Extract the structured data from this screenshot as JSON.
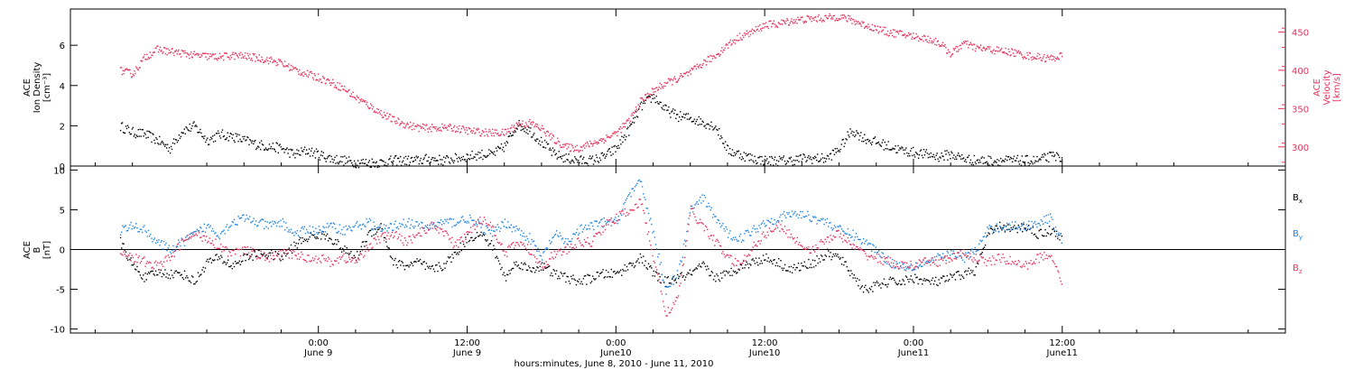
{
  "colors": {
    "black": "#000000",
    "red": "#e8335c",
    "blue": "#1f86e6"
  },
  "chart_data": [
    {
      "type": "scatter",
      "panel": "top",
      "ylabel_left": [
        "ACE",
        "Ion Density",
        "[cm⁻³]"
      ],
      "ylabel_right": [
        "ACE",
        "Velocity",
        "[km/s]"
      ],
      "ylim_left": [
        0,
        7.8
      ],
      "ylim_right": [
        275,
        480
      ],
      "yticks_left": [
        0,
        2,
        4,
        6
      ],
      "yticks_right": [
        300,
        350,
        400,
        450
      ],
      "series": [
        {
          "axis": "left",
          "color": "#000000",
          "x": [
            -16,
            -15,
            -14,
            -13,
            -12,
            -11,
            -10,
            -9,
            -8,
            -7,
            -6,
            -5,
            -4,
            -3,
            -2,
            -1,
            0,
            1,
            2,
            3,
            4,
            5,
            6,
            7,
            8,
            9,
            10,
            11,
            12,
            13,
            14,
            15,
            16,
            17,
            18,
            19,
            20,
            21,
            22,
            23,
            24,
            25,
            26,
            27,
            28,
            29,
            30,
            31,
            32,
            33,
            34,
            35,
            36,
            37,
            38,
            39,
            40,
            41,
            42,
            43,
            44,
            45,
            46,
            47,
            48,
            49,
            50,
            51,
            52,
            53,
            54,
            55,
            56,
            57,
            58,
            59,
            60
          ],
          "y": [
            2.0,
            1.7,
            1.6,
            1.3,
            0.9,
            1.8,
            2.0,
            1.3,
            1.6,
            1.5,
            1.3,
            1.1,
            1.0,
            0.9,
            0.6,
            0.8,
            0.6,
            0.4,
            0.3,
            0.2,
            0.2,
            0.2,
            0.3,
            0.3,
            0.3,
            0.4,
            0.3,
            0.4,
            0.5,
            0.6,
            0.6,
            1.0,
            2.1,
            1.8,
            1.2,
            0.6,
            0.4,
            0.3,
            0.3,
            0.5,
            0.9,
            1.8,
            3.0,
            3.5,
            2.8,
            2.5,
            2.4,
            2.2,
            2.0,
            0.8,
            0.6,
            0.4,
            0.3,
            0.3,
            0.3,
            0.4,
            0.4,
            0.4,
            0.9,
            1.8,
            1.4,
            1.2,
            1.0,
            0.8,
            0.7,
            0.6,
            0.5,
            0.6,
            0.4,
            0.3,
            0.3,
            0.3,
            0.3,
            0.3,
            0.3,
            0.5,
            0.5
          ]
        },
        {
          "axis": "right",
          "color": "#e8335c",
          "x": [
            -16,
            -15,
            -14,
            -13,
            -12,
            -11,
            -10,
            -9,
            -8,
            -7,
            -6,
            -5,
            -4,
            -3,
            -2,
            -1,
            0,
            1,
            2,
            3,
            4,
            5,
            6,
            7,
            8,
            9,
            10,
            11,
            12,
            13,
            14,
            15,
            16,
            17,
            18,
            19,
            20,
            21,
            22,
            23,
            24,
            25,
            26,
            27,
            28,
            29,
            30,
            31,
            32,
            33,
            34,
            35,
            36,
            37,
            38,
            39,
            40,
            41,
            42,
            43,
            44,
            45,
            46,
            47,
            48,
            49,
            50,
            51,
            52,
            53,
            54,
            55,
            56,
            57,
            58,
            59,
            60
          ],
          "y": [
            400,
            396,
            418,
            428,
            425,
            423,
            420,
            419,
            418,
            420,
            419,
            417,
            414,
            410,
            402,
            396,
            391,
            385,
            377,
            365,
            355,
            345,
            336,
            330,
            326,
            325,
            326,
            325,
            322,
            320,
            319,
            319,
            330,
            332,
            324,
            310,
            300,
            299,
            305,
            311,
            319,
            334,
            361,
            374,
            384,
            390,
            398,
            410,
            420,
            434,
            445,
            451,
            460,
            461,
            465,
            467,
            468,
            469,
            471,
            466,
            460,
            455,
            450,
            448,
            445,
            442,
            437,
            422,
            436,
            430,
            428,
            426,
            424,
            420,
            418,
            416,
            420
          ]
        }
      ]
    },
    {
      "type": "scatter",
      "panel": "bottom",
      "ylabel": [
        "ACE",
        "B",
        "[nT]"
      ],
      "ylim": [
        -10.5,
        10.5
      ],
      "yticks": [
        -10,
        -5,
        0,
        5,
        10
      ],
      "zero_line": true,
      "legend": [
        "Bx",
        "By",
        "Bz"
      ],
      "legend_placement": "right",
      "series": [
        {
          "name": "Bx",
          "color": "#000000",
          "x": [
            -16,
            -15,
            -14,
            -13,
            -12,
            -11,
            -10,
            -9,
            -8,
            -7,
            -6,
            -5,
            -4,
            -3,
            -2,
            -1,
            0,
            1,
            2,
            3,
            4,
            5,
            6,
            7,
            8,
            9,
            10,
            11,
            12,
            13,
            14,
            15,
            16,
            17,
            18,
            19,
            20,
            21,
            22,
            23,
            24,
            25,
            26,
            27,
            28,
            29,
            30,
            31,
            32,
            33,
            34,
            35,
            36,
            37,
            38,
            39,
            40,
            41,
            42,
            43,
            44,
            45,
            46,
            47,
            48,
            49,
            50,
            51,
            52,
            53,
            54,
            55,
            56,
            57,
            58,
            59,
            60
          ],
          "y": [
            1.0,
            -2.0,
            -3.5,
            -2.8,
            -3.0,
            -3.0,
            -4.0,
            -1.5,
            -1.0,
            -2.0,
            -1.0,
            -0.5,
            -0.5,
            -1.0,
            0.5,
            1.5,
            2.0,
            1.5,
            0.0,
            -1.0,
            2.0,
            3.0,
            -1.5,
            -2.0,
            -1.5,
            -2.5,
            -2.0,
            -0.5,
            1.5,
            2.0,
            0.5,
            -3.5,
            -1.5,
            -2.5,
            -2.0,
            -3.0,
            -3.5,
            -4.0,
            -3.5,
            -3.0,
            -3.0,
            -2.0,
            -1.0,
            -3.0,
            -4.0,
            -3.5,
            -3.0,
            -2.0,
            -3.5,
            -3.0,
            -2.0,
            -1.5,
            -1.0,
            -1.5,
            -2.5,
            -2.0,
            -1.5,
            -0.5,
            -1.0,
            -3.0,
            -5.0,
            -4.5,
            -4.0,
            -4.0,
            -3.5,
            -4.0,
            -4.0,
            -3.5,
            -3.0,
            -2.5,
            2.0,
            3.0,
            2.5,
            3.0,
            2.0,
            2.5,
            1.5
          ]
        },
        {
          "name": "By",
          "color": "#1f86e6",
          "x": [
            -16,
            -15,
            -14,
            -13,
            -12,
            -11,
            -10,
            -9,
            -8,
            -7,
            -6,
            -5,
            -4,
            -3,
            -2,
            -1,
            0,
            1,
            2,
            3,
            4,
            5,
            6,
            7,
            8,
            9,
            10,
            11,
            12,
            13,
            14,
            15,
            16,
            17,
            18,
            19,
            20,
            21,
            22,
            23,
            24,
            25,
            26,
            27,
            28,
            29,
            30,
            31,
            32,
            33,
            34,
            35,
            36,
            37,
            38,
            39,
            40,
            41,
            42,
            43,
            44,
            45,
            46,
            47,
            48,
            49,
            50,
            51,
            52,
            53,
            54,
            55,
            56,
            57,
            58,
            59,
            60
          ],
          "y": [
            2.5,
            3.0,
            2.5,
            1.0,
            0.0,
            1.0,
            2.0,
            3.0,
            2.0,
            3.5,
            4.0,
            3.5,
            3.0,
            3.5,
            2.0,
            2.5,
            2.5,
            3.0,
            2.5,
            3.0,
            3.5,
            2.5,
            3.0,
            3.5,
            3.0,
            3.0,
            3.5,
            3.5,
            4.0,
            3.0,
            2.0,
            3.5,
            2.5,
            1.5,
            -1.0,
            2.0,
            1.0,
            2.5,
            3.0,
            3.5,
            3.5,
            7.0,
            8.5,
            2.0,
            -5.0,
            -3.0,
            5.0,
            6.5,
            4.0,
            2.0,
            1.5,
            2.5,
            3.5,
            4.0,
            4.5,
            4.5,
            4.0,
            3.5,
            2.5,
            2.0,
            1.0,
            0.0,
            -1.5,
            -2.0,
            -2.0,
            -1.5,
            -1.0,
            -0.5,
            -1.0,
            0.0,
            2.5,
            3.0,
            3.0,
            3.0,
            3.5,
            4.0,
            1.0
          ]
        },
        {
          "name": "Bz",
          "color": "#e8335c",
          "x": [
            -16,
            -15,
            -14,
            -13,
            -12,
            -11,
            -10,
            -9,
            -8,
            -7,
            -6,
            -5,
            -4,
            -3,
            -2,
            -1,
            0,
            1,
            2,
            3,
            4,
            5,
            6,
            7,
            8,
            9,
            10,
            11,
            12,
            13,
            14,
            15,
            16,
            17,
            18,
            19,
            20,
            21,
            22,
            23,
            24,
            25,
            26,
            27,
            28,
            29,
            30,
            31,
            32,
            33,
            34,
            35,
            36,
            37,
            38,
            39,
            40,
            41,
            42,
            43,
            44,
            45,
            46,
            47,
            48,
            49,
            50,
            51,
            52,
            53,
            54,
            55,
            56,
            57,
            58,
            59,
            60
          ],
          "y": [
            0.0,
            -1.0,
            -1.5,
            -2.0,
            -1.0,
            1.0,
            2.0,
            1.5,
            0.5,
            -0.5,
            0.0,
            -0.5,
            -1.0,
            -0.5,
            -0.5,
            -1.0,
            -1.0,
            -1.5,
            -1.0,
            -1.5,
            0.5,
            1.5,
            2.0,
            1.0,
            2.0,
            3.0,
            2.5,
            0.5,
            2.0,
            4.0,
            3.0,
            -0.5,
            1.0,
            0.0,
            -2.0,
            -0.5,
            0.0,
            1.0,
            1.0,
            3.0,
            4.0,
            5.0,
            6.0,
            -1.0,
            -8.0,
            -6.0,
            5.0,
            3.0,
            1.0,
            -1.0,
            -2.0,
            0.5,
            2.0,
            3.0,
            2.0,
            0.5,
            0.0,
            1.5,
            2.0,
            0.5,
            -0.5,
            -1.0,
            -1.5,
            -2.0,
            -2.0,
            -1.5,
            -1.5,
            -1.0,
            -0.5,
            -1.0,
            -1.5,
            -1.0,
            -1.5,
            -2.0,
            -1.0,
            -0.5,
            -4.0
          ]
        }
      ]
    }
  ],
  "xaxis": {
    "range_hours": [
      -20,
      78
    ],
    "title": "hours:minutes,  June  8, 2010 - June 11, 2010",
    "ticks": [
      {
        "h": 0,
        "time": "0:00",
        "date": "June 9"
      },
      {
        "h": 12,
        "time": "12:00",
        "date": "June 9"
      },
      {
        "h": 24,
        "time": "0:00",
        "date": "June10"
      },
      {
        "h": 36,
        "time": "12:00",
        "date": "June10"
      },
      {
        "h": 48,
        "time": "0:00",
        "date": "June11"
      },
      {
        "h": 60,
        "time": "12:00",
        "date": "June11"
      }
    ]
  },
  "legend_labels": {
    "bx": "B",
    "bx_sub": "x",
    "by": "B",
    "by_sub": "y",
    "bz": "B",
    "bz_sub": "z"
  }
}
